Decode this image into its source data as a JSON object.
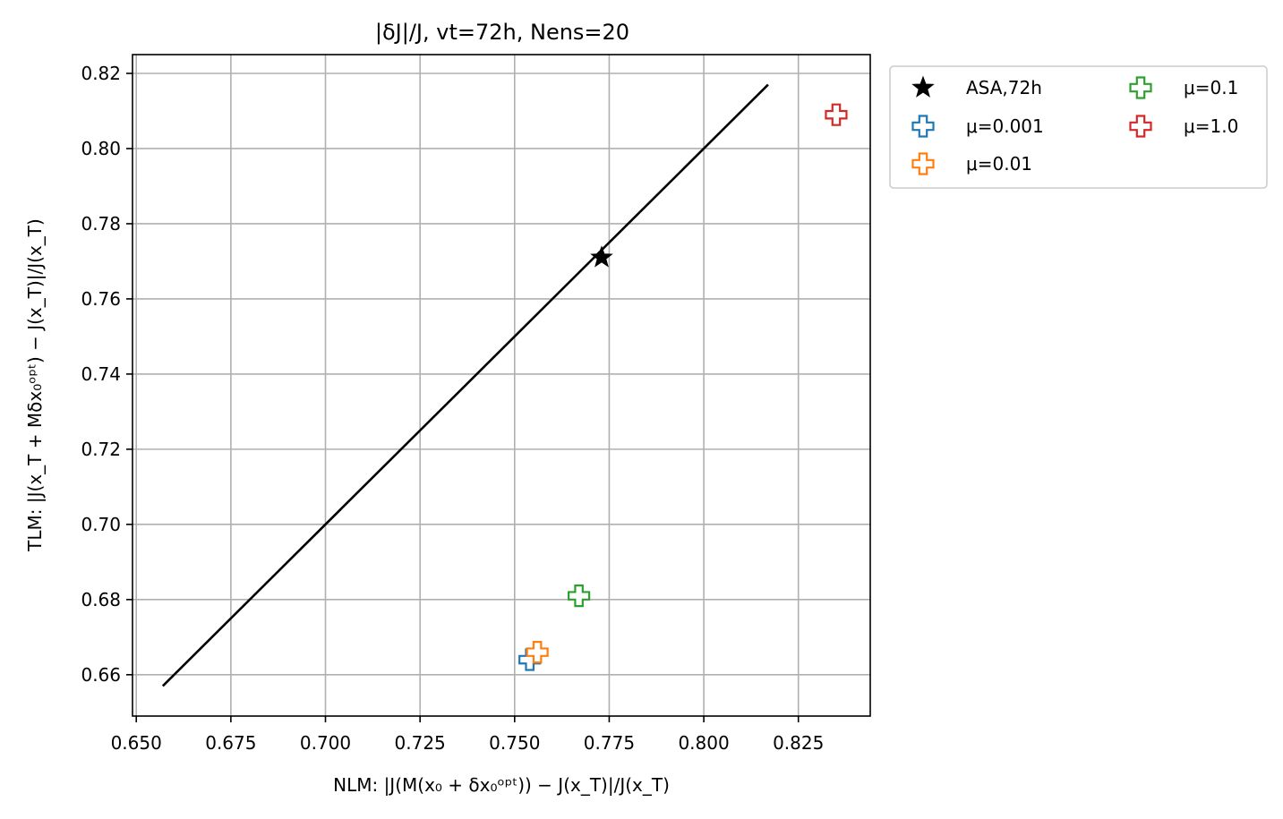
{
  "chart_data": {
    "type": "scatter",
    "title": "|δJ|/J, vt=72h, Nens=20",
    "xlabel": "NLM: |J(M(x₀ + δx₀ᵒᵖᵗ)) − J(x_T)|/J(x_T)",
    "ylabel": "TLM: |J(x_T + Mδx₀ᵒᵖᵗ) − J(x_T)|/J(x_T)",
    "xlim": [
      0.649,
      0.844
    ],
    "ylim": [
      0.649,
      0.825
    ],
    "xticks": [
      0.65,
      0.675,
      0.7,
      0.725,
      0.75,
      0.775,
      0.8,
      0.825
    ],
    "xtick_labels": [
      "0.650",
      "0.675",
      "0.700",
      "0.725",
      "0.750",
      "0.775",
      "0.800",
      "0.825"
    ],
    "yticks": [
      0.66,
      0.68,
      0.7,
      0.72,
      0.74,
      0.76,
      0.78,
      0.8,
      0.82
    ],
    "ytick_labels": [
      "0.66",
      "0.68",
      "0.70",
      "0.72",
      "0.74",
      "0.76",
      "0.78",
      "0.80",
      "0.82"
    ],
    "grid": true,
    "reference_line": {
      "x": [
        0.657,
        0.817
      ],
      "y": [
        0.657,
        0.817
      ],
      "color": "#000000"
    },
    "legend_position": "outside upper right",
    "series": [
      {
        "name": "ASA,72h",
        "marker": "star",
        "color": "#000000",
        "points": [
          [
            0.773,
            0.771
          ]
        ]
      },
      {
        "name": "μ=0.001",
        "marker": "plus-outline",
        "color": "#1f77b4",
        "points": [
          [
            0.754,
            0.664
          ]
        ]
      },
      {
        "name": "μ=0.01",
        "marker": "plus-outline",
        "color": "#ff7f0e",
        "points": [
          [
            0.756,
            0.666
          ]
        ]
      },
      {
        "name": "μ=0.1",
        "marker": "plus-outline",
        "color": "#2ca02c",
        "points": [
          [
            0.767,
            0.681
          ]
        ]
      },
      {
        "name": "μ=1.0",
        "marker": "plus-outline",
        "color": "#d62728",
        "points": [
          [
            0.835,
            0.809
          ]
        ]
      }
    ]
  }
}
